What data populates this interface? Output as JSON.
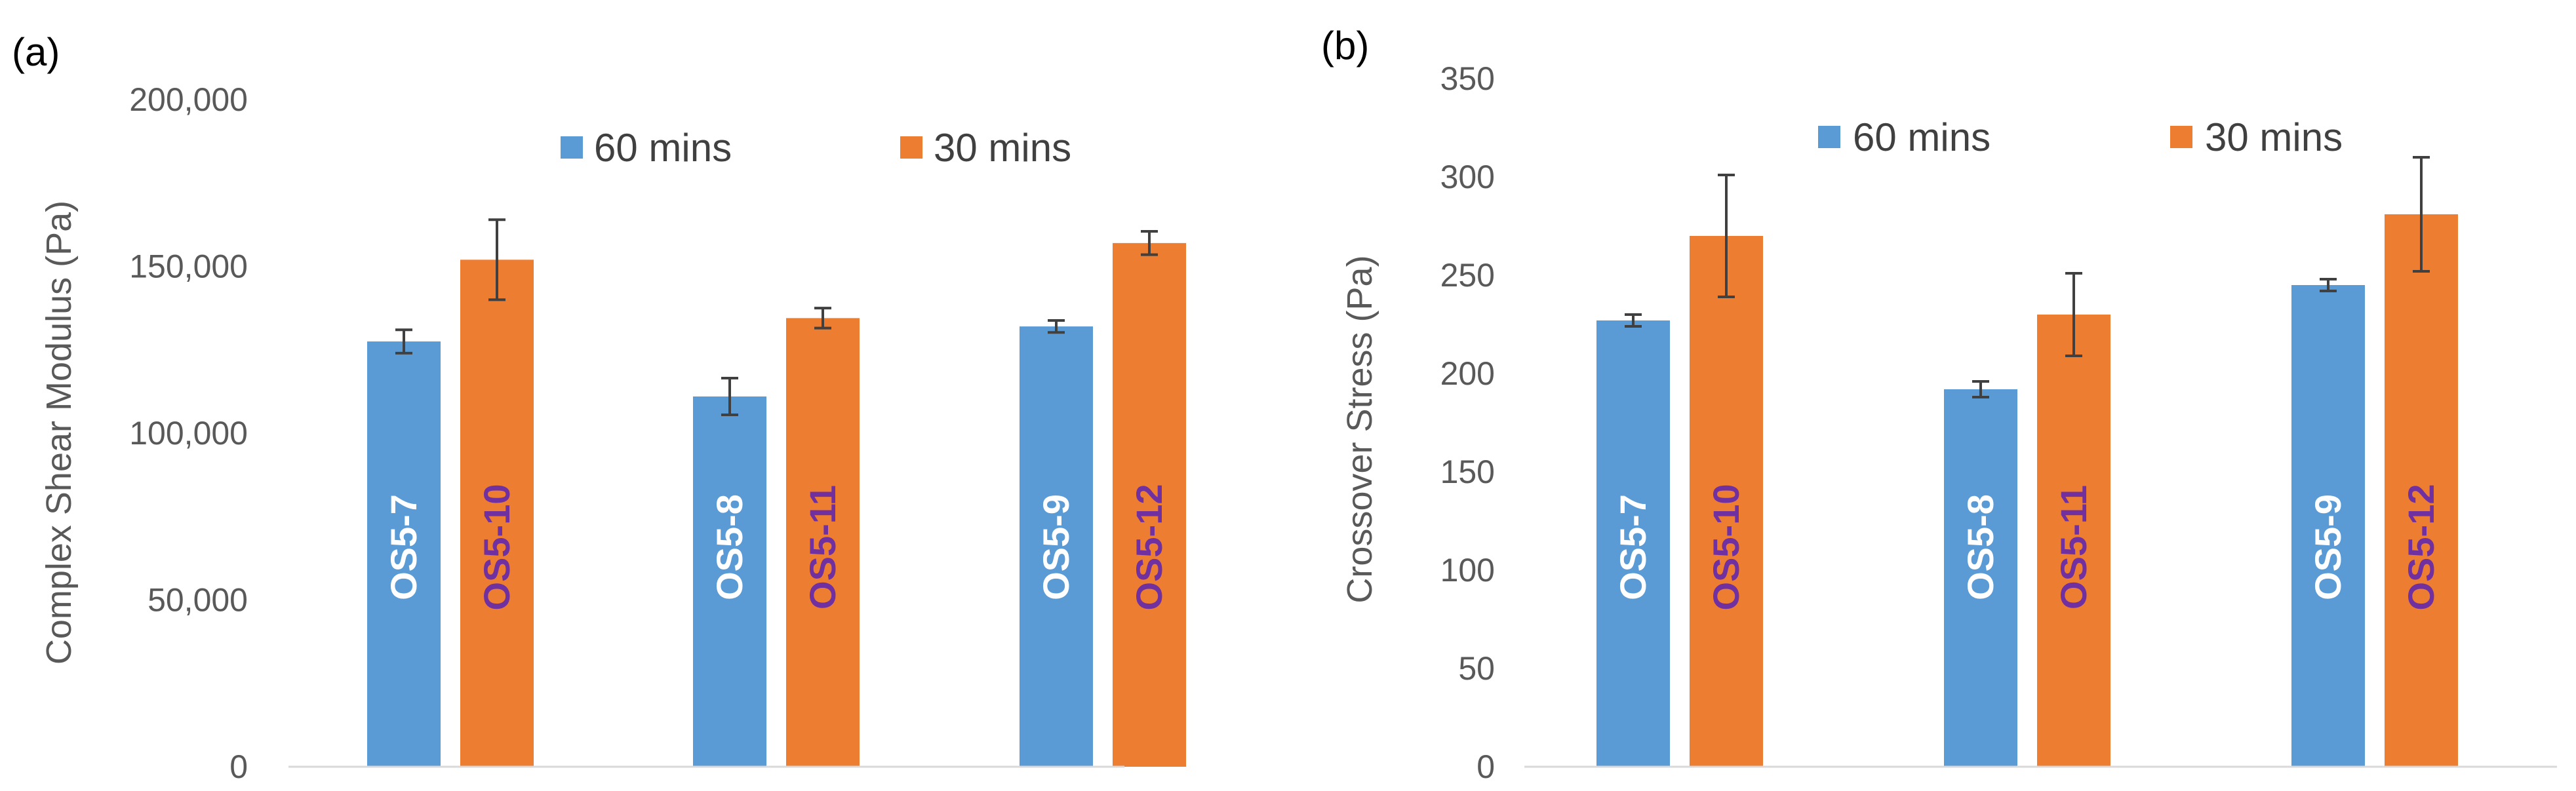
{
  "colors": {
    "series_60": "#5B9BD5",
    "series_30": "#ED7D31",
    "label_30": "#7030A0",
    "label_60": "#ffffff"
  },
  "chart_data": [
    {
      "panel": "(a)",
      "type": "bar",
      "ylabel": "Complex Shear Modulus (Pa)",
      "ylim": [
        0,
        200000
      ],
      "yticks": [
        0,
        50000,
        100000,
        150000,
        200000
      ],
      "ytick_labels": [
        "0",
        "50,000",
        "100,000",
        "150,000",
        "200,000"
      ],
      "legend": [
        "60 mins",
        "30 mins"
      ],
      "groups": [
        {
          "bars": [
            {
              "series": "60 mins",
              "label": "OS5-7",
              "value": 127500,
              "error": 3500
            },
            {
              "series": "30 mins",
              "label": "OS5-10",
              "value": 152000,
              "error": 12000
            }
          ]
        },
        {
          "bars": [
            {
              "series": "60 mins",
              "label": "OS5-8",
              "value": 111000,
              "error": 5500
            },
            {
              "series": "30 mins",
              "label": "OS5-11",
              "value": 134500,
              "error": 3000
            }
          ]
        },
        {
          "bars": [
            {
              "series": "60 mins",
              "label": "OS5-9",
              "value": 132000,
              "error": 1800
            },
            {
              "series": "30 mins",
              "label": "OS5-12",
              "value": 157000,
              "error": 3500
            }
          ]
        }
      ]
    },
    {
      "panel": "(b)",
      "type": "bar",
      "ylabel": "Crossover Stress (Pa)",
      "ylim": [
        0,
        350
      ],
      "yticks": [
        0,
        50,
        100,
        150,
        200,
        250,
        300,
        350
      ],
      "ytick_labels": [
        "0",
        "50",
        "100",
        "150",
        "200",
        "250",
        "300",
        "350"
      ],
      "legend": [
        "60 mins",
        "30 mins"
      ],
      "groups": [
        {
          "bars": [
            {
              "series": "60 mins",
              "label": "OS5-7",
              "value": 227,
              "error": 3
            },
            {
              "series": "30 mins",
              "label": "OS5-10",
              "value": 270,
              "error": 31
            }
          ]
        },
        {
          "bars": [
            {
              "series": "60 mins",
              "label": "OS5-8",
              "value": 192,
              "error": 4
            },
            {
              "series": "30 mins",
              "label": "OS5-11",
              "value": 230,
              "error": 21
            }
          ]
        },
        {
          "bars": [
            {
              "series": "60 mins",
              "label": "OS5-9",
              "value": 245,
              "error": 3
            },
            {
              "series": "30 mins",
              "label": "OS5-12",
              "value": 281,
              "error": 29
            }
          ]
        }
      ]
    }
  ]
}
